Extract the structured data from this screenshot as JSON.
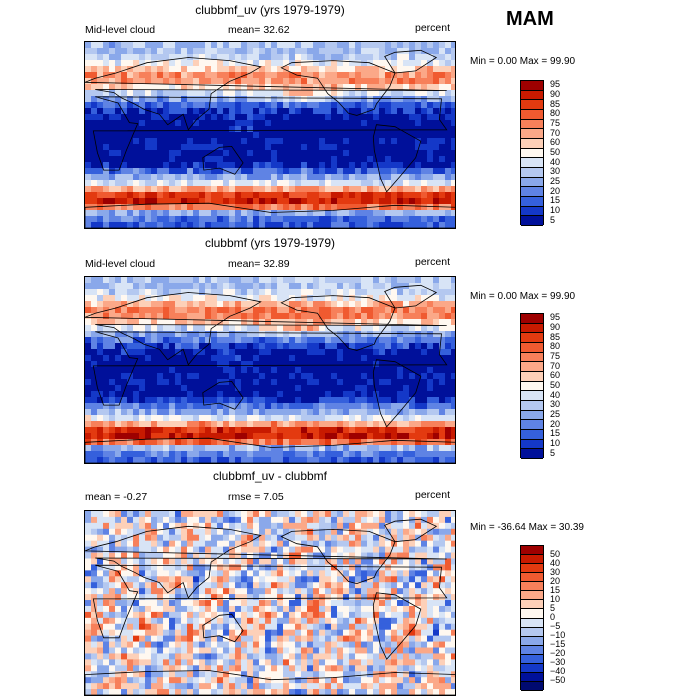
{
  "season": "MAM",
  "panels": [
    {
      "title": "clubbmf_uv (yrs 1979-1979)",
      "left_label": "Mid-level cloud",
      "center_label": "mean=  32.62",
      "units": "percent",
      "minmax": "Min =    0.00 Max =   99.90",
      "legend_levels": [
        "95",
        "90",
        "85",
        "80",
        "75",
        "70",
        "60",
        "50",
        "40",
        "30",
        "25",
        "20",
        "15",
        "10",
        "5"
      ],
      "legend_colors": [
        "#9e0000",
        "#c81a00",
        "#e33a10",
        "#f05a30",
        "#f7805a",
        "#fba888",
        "#fdd0b8",
        "#fff8f0",
        "#d8e4f6",
        "#b4c8f0",
        "#8aa8ea",
        "#5f83e4",
        "#3560dc",
        "#1438c8",
        "#00109a"
      ]
    },
    {
      "title": "clubbmf (yrs 1979-1979)",
      "left_label": "Mid-level cloud",
      "center_label": "mean=  32.89",
      "units": "percent",
      "minmax": "Min =    0.00 Max =   99.90",
      "legend_levels": [
        "95",
        "90",
        "85",
        "80",
        "75",
        "70",
        "60",
        "50",
        "40",
        "30",
        "25",
        "20",
        "15",
        "10",
        "5"
      ],
      "legend_colors": [
        "#9e0000",
        "#c81a00",
        "#e33a10",
        "#f05a30",
        "#f7805a",
        "#fba888",
        "#fdd0b8",
        "#fff8f0",
        "#d8e4f6",
        "#b4c8f0",
        "#8aa8ea",
        "#5f83e4",
        "#3560dc",
        "#1438c8",
        "#00109a"
      ]
    },
    {
      "title": "clubbmf_uv - clubbmf",
      "left_label": "mean =   -0.27",
      "center_label": "rmse =    7.05",
      "units": "percent",
      "minmax": "Min = -36.64 Max =  30.39",
      "legend_levels": [
        "50",
        "40",
        "30",
        "20",
        "15",
        "10",
        "5",
        "0",
        "−5",
        "−10",
        "−15",
        "−20",
        "−30",
        "−40",
        "−50"
      ],
      "legend_colors": [
        "#9e0000",
        "#c81a00",
        "#e33a10",
        "#f05a30",
        "#f7805a",
        "#fba888",
        "#fdd0b8",
        "#fff8f0",
        "#d8e4f6",
        "#b4c8f0",
        "#8aa8ea",
        "#5f83e4",
        "#3560dc",
        "#1438c8",
        "#00109a",
        "#000a70"
      ]
    }
  ],
  "chart_data": {
    "type": "heatmap",
    "season": "MAM",
    "variable": "Mid-level cloud",
    "units": "percent",
    "maps": [
      {
        "title": "clubbmf_uv (yrs 1979-1979)",
        "mean": 32.62,
        "min": 0.0,
        "max": 99.9,
        "levels": [
          5,
          10,
          15,
          20,
          25,
          30,
          40,
          50,
          60,
          70,
          75,
          80,
          85,
          90,
          95
        ]
      },
      {
        "title": "clubbmf (yrs 1979-1979)",
        "mean": 32.89,
        "min": 0.0,
        "max": 99.9,
        "levels": [
          5,
          10,
          15,
          20,
          25,
          30,
          40,
          50,
          60,
          70,
          75,
          80,
          85,
          90,
          95
        ]
      },
      {
        "title": "clubbmf_uv - clubbmf",
        "mean": -0.27,
        "rmse": 7.05,
        "min": -36.64,
        "max": 30.39,
        "levels": [
          -50,
          -40,
          -30,
          -20,
          -15,
          -10,
          -5,
          0,
          5,
          10,
          15,
          20,
          30,
          40,
          50
        ]
      }
    ]
  }
}
